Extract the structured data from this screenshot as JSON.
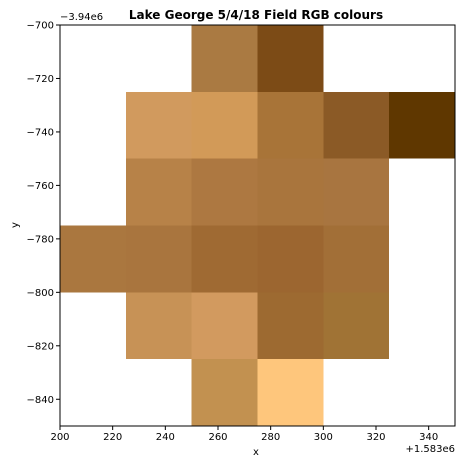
{
  "chart_data": {
    "type": "heatmap",
    "title": "Lake George 5/4/18 Field RGB colours",
    "xlabel": "x",
    "ylabel": "y",
    "x_offset_label": "+1.583e6",
    "y_offset_label": "−3.94e6",
    "xlim": [
      200,
      350
    ],
    "ylim": [
      -850,
      -700
    ],
    "cell_size": 25,
    "xticks": [
      200,
      220,
      240,
      260,
      280,
      300,
      320,
      340
    ],
    "yticks": [
      -700,
      -720,
      -740,
      -760,
      -780,
      -800,
      -820,
      -840
    ],
    "ytick_labels": [
      "−700",
      "−720",
      "−740",
      "−760",
      "−780",
      "−800",
      "−820",
      "−840"
    ],
    "cells": [
      {
        "x0": 250,
        "y_top": -700,
        "color": "#aa7a42"
      },
      {
        "x0": 275,
        "y_top": -700,
        "color": "#7c4b16"
      },
      {
        "x0": 225,
        "y_top": -725,
        "color": "#d19a5e"
      },
      {
        "x0": 250,
        "y_top": -725,
        "color": "#d29a58"
      },
      {
        "x0": 275,
        "y_top": -725,
        "color": "#a87438"
      },
      {
        "x0": 300,
        "y_top": -725,
        "color": "#8b5a26"
      },
      {
        "x0": 325,
        "y_top": -725,
        "color": "#5f3700"
      },
      {
        "x0": 225,
        "y_top": -750,
        "color": "#b78248"
      },
      {
        "x0": 250,
        "y_top": -750,
        "color": "#ad7841"
      },
      {
        "x0": 275,
        "y_top": -750,
        "color": "#a9753d"
      },
      {
        "x0": 300,
        "y_top": -750,
        "color": "#a87540"
      },
      {
        "x0": 200,
        "y_top": -775,
        "color": "#aa773f"
      },
      {
        "x0": 225,
        "y_top": -775,
        "color": "#a9753e"
      },
      {
        "x0": 250,
        "y_top": -775,
        "color": "#9f6a33"
      },
      {
        "x0": 275,
        "y_top": -775,
        "color": "#9c6630"
      },
      {
        "x0": 300,
        "y_top": -775,
        "color": "#a26f37"
      },
      {
        "x0": 225,
        "y_top": -800,
        "color": "#c79256"
      },
      {
        "x0": 250,
        "y_top": -800,
        "color": "#d29a5f"
      },
      {
        "x0": 275,
        "y_top": -800,
        "color": "#9d6a31"
      },
      {
        "x0": 300,
        "y_top": -800,
        "color": "#a07335"
      },
      {
        "x0": 250,
        "y_top": -825,
        "color": "#c29150"
      },
      {
        "x0": 275,
        "y_top": -825,
        "color": "#fec67c"
      }
    ]
  }
}
